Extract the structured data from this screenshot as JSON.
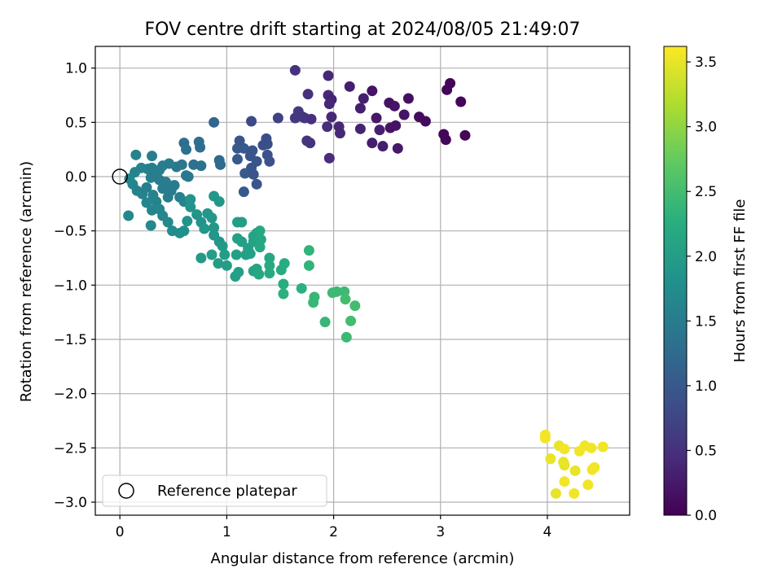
{
  "chart_data": {
    "type": "scatter",
    "title": "FOV centre drift starting at 2024/08/05 21:49:07",
    "xlabel": "Angular distance from reference (arcmin)",
    "ylabel": "Rotation from reference (arcmin)",
    "xlim": [
      -0.23,
      4.77
    ],
    "ylim": [
      -3.12,
      1.2
    ],
    "xticks": [
      0,
      1,
      2,
      3,
      4
    ],
    "xtick_labels": [
      "0",
      "1",
      "2",
      "3",
      "4"
    ],
    "yticks": [
      1.0,
      0.5,
      0.0,
      -0.5,
      -1.0,
      -1.5,
      -2.0,
      -2.5,
      -3.0
    ],
    "ytick_labels": [
      "1.0",
      "0.5",
      "0.0",
      "−0.5",
      "−1.0",
      "−1.5",
      "−2.0",
      "−2.5",
      "−3.0"
    ],
    "grid": true,
    "colorbar": {
      "label": "Hours from first FF file",
      "cmap": "viridis",
      "range": [
        0.0,
        3.62
      ],
      "ticks": [
        0.0,
        0.5,
        1.0,
        1.5,
        2.0,
        2.5,
        3.0,
        3.5
      ],
      "tick_labels": [
        "0.0",
        "0.5",
        "1.0",
        "1.5",
        "2.0",
        "2.5",
        "3.0",
        "3.5"
      ]
    },
    "legend": {
      "position": "lower-left",
      "entries": [
        "Reference platepar"
      ]
    },
    "reference_point": {
      "x": 0.0,
      "y": 0.0,
      "label": "Reference platepar"
    },
    "points": [
      [
        1.64,
        0.98,
        0.5
      ],
      [
        1.95,
        0.93,
        0.4
      ],
      [
        2.15,
        0.83,
        0.3
      ],
      [
        2.28,
        0.72,
        0.3
      ],
      [
        2.36,
        0.79,
        0.2
      ],
      [
        1.76,
        0.76,
        0.5
      ],
      [
        1.95,
        0.75,
        0.4
      ],
      [
        1.98,
        0.71,
        0.35
      ],
      [
        1.96,
        0.67,
        0.4
      ],
      [
        2.25,
        0.63,
        0.3
      ],
      [
        2.52,
        0.68,
        0.2
      ],
      [
        2.57,
        0.65,
        0.2
      ],
      [
        2.7,
        0.72,
        0.15
      ],
      [
        2.66,
        0.57,
        0.2
      ],
      [
        2.8,
        0.55,
        0.1
      ],
      [
        2.86,
        0.51,
        0.1
      ],
      [
        2.4,
        0.54,
        0.25
      ],
      [
        2.53,
        0.45,
        0.2
      ],
      [
        2.58,
        0.47,
        0.2
      ],
      [
        3.09,
        0.86,
        0.05
      ],
      [
        3.06,
        0.8,
        0.05
      ],
      [
        3.19,
        0.69,
        0.05
      ],
      [
        3.03,
        0.39,
        0.05
      ],
      [
        3.05,
        0.34,
        0.05
      ],
      [
        3.23,
        0.38,
        0.05
      ],
      [
        1.67,
        0.6,
        0.6
      ],
      [
        1.71,
        0.55,
        0.55
      ],
      [
        1.64,
        0.54,
        0.6
      ],
      [
        1.73,
        0.54,
        0.55
      ],
      [
        1.79,
        0.53,
        0.5
      ],
      [
        1.98,
        0.55,
        0.4
      ],
      [
        1.94,
        0.46,
        0.45
      ],
      [
        2.05,
        0.46,
        0.4
      ],
      [
        2.06,
        0.4,
        0.4
      ],
      [
        2.25,
        0.44,
        0.35
      ],
      [
        2.43,
        0.43,
        0.3
      ],
      [
        2.36,
        0.31,
        0.3
      ],
      [
        2.46,
        0.28,
        0.3
      ],
      [
        2.6,
        0.26,
        0.25
      ],
      [
        1.75,
        0.33,
        0.55
      ],
      [
        1.78,
        0.31,
        0.55
      ],
      [
        1.96,
        0.17,
        0.45
      ],
      [
        1.48,
        0.54,
        0.7
      ],
      [
        1.23,
        0.51,
        0.8
      ],
      [
        1.37,
        0.35,
        0.85
      ],
      [
        1.38,
        0.3,
        0.85
      ],
      [
        1.34,
        0.29,
        0.85
      ],
      [
        1.38,
        0.2,
        0.9
      ],
      [
        1.4,
        0.14,
        0.9
      ],
      [
        1.12,
        0.33,
        0.95
      ],
      [
        1.1,
        0.26,
        1.0
      ],
      [
        1.16,
        0.26,
        1.0
      ],
      [
        1.24,
        0.24,
        0.95
      ],
      [
        1.22,
        0.19,
        0.95
      ],
      [
        1.1,
        0.16,
        1.0
      ],
      [
        1.28,
        0.14,
        0.95
      ],
      [
        1.23,
        0.08,
        0.95
      ],
      [
        1.17,
        0.03,
        1.0
      ],
      [
        1.25,
        0.02,
        0.95
      ],
      [
        1.28,
        -0.07,
        0.95
      ],
      [
        1.16,
        -0.14,
        1.0
      ],
      [
        0.88,
        0.5,
        1.2
      ],
      [
        0.6,
        0.31,
        1.3
      ],
      [
        0.74,
        0.32,
        1.3
      ],
      [
        0.75,
        0.27,
        1.3
      ],
      [
        0.62,
        0.25,
        1.35
      ],
      [
        0.69,
        0.11,
        1.35
      ],
      [
        0.76,
        0.1,
        1.35
      ],
      [
        0.93,
        0.15,
        1.25
      ],
      [
        0.94,
        0.11,
        1.25
      ],
      [
        0.58,
        0.11,
        1.4
      ],
      [
        0.62,
        0.01,
        1.45
      ],
      [
        0.64,
        0.0,
        1.45
      ],
      [
        0.53,
        0.09,
        1.45
      ],
      [
        0.46,
        0.12,
        1.5
      ],
      [
        0.4,
        0.1,
        1.5
      ],
      [
        0.3,
        0.19,
        1.55
      ],
      [
        0.37,
        0.06,
        1.55
      ],
      [
        0.3,
        0.08,
        1.55
      ],
      [
        0.26,
        0.07,
        1.55
      ],
      [
        0.2,
        0.08,
        1.6
      ],
      [
        0.15,
        0.2,
        1.6
      ],
      [
        0.14,
        0.04,
        1.6
      ],
      [
        0.09,
        -0.02,
        1.65
      ],
      [
        0.12,
        -0.07,
        1.65
      ],
      [
        0.16,
        -0.13,
        1.6
      ],
      [
        0.21,
        -0.16,
        1.6
      ],
      [
        0.25,
        -0.1,
        1.55
      ],
      [
        0.29,
        -0.01,
        1.55
      ],
      [
        0.33,
        0.01,
        1.55
      ],
      [
        0.37,
        -0.03,
        1.5
      ],
      [
        0.43,
        -0.05,
        1.5
      ],
      [
        0.4,
        -0.11,
        1.5
      ],
      [
        0.48,
        -0.13,
        1.5
      ],
      [
        0.45,
        -0.19,
        1.5
      ],
      [
        0.51,
        -0.08,
        1.5
      ],
      [
        0.56,
        -0.19,
        1.55
      ],
      [
        0.6,
        -0.23,
        1.6
      ],
      [
        0.31,
        -0.17,
        1.6
      ],
      [
        0.34,
        -0.23,
        1.6
      ],
      [
        0.25,
        -0.24,
        1.65
      ],
      [
        0.3,
        -0.31,
        1.65
      ],
      [
        0.37,
        -0.3,
        1.65
      ],
      [
        0.4,
        -0.36,
        1.65
      ],
      [
        0.45,
        -0.42,
        1.7
      ],
      [
        0.29,
        -0.45,
        1.7
      ],
      [
        0.08,
        -0.36,
        1.7
      ],
      [
        0.49,
        -0.5,
        1.75
      ],
      [
        0.56,
        -0.52,
        1.75
      ],
      [
        0.6,
        -0.5,
        1.8
      ],
      [
        0.63,
        -0.41,
        1.85
      ],
      [
        0.66,
        -0.28,
        1.85
      ],
      [
        0.66,
        -0.21,
        1.85
      ],
      [
        0.72,
        -0.35,
        1.85
      ],
      [
        0.76,
        -0.42,
        1.85
      ],
      [
        0.82,
        -0.34,
        1.9
      ],
      [
        0.79,
        -0.48,
        1.9
      ],
      [
        0.86,
        -0.38,
        1.9
      ],
      [
        0.88,
        -0.47,
        1.9
      ],
      [
        0.93,
        -0.23,
        1.9
      ],
      [
        0.88,
        -0.18,
        1.9
      ],
      [
        0.88,
        -0.54,
        1.9
      ],
      [
        0.93,
        -0.6,
        1.9
      ],
      [
        0.96,
        -0.64,
        1.95
      ],
      [
        0.76,
        -0.75,
        1.95
      ],
      [
        0.86,
        -0.72,
        2.0
      ],
      [
        0.92,
        -0.8,
        2.0
      ],
      [
        0.98,
        -0.72,
        2.0
      ],
      [
        1.0,
        -0.82,
        2.0
      ],
      [
        1.09,
        -0.72,
        2.05
      ],
      [
        1.08,
        -0.92,
        2.05
      ],
      [
        1.11,
        -0.88,
        2.05
      ],
      [
        1.1,
        -0.57,
        2.05
      ],
      [
        1.14,
        -0.6,
        2.05
      ],
      [
        1.1,
        -0.42,
        2.0
      ],
      [
        1.14,
        -0.42,
        2.0
      ],
      [
        1.2,
        -0.66,
        2.05
      ],
      [
        1.22,
        -0.71,
        2.05
      ],
      [
        1.18,
        -0.72,
        2.05
      ],
      [
        1.25,
        -0.55,
        2.1
      ],
      [
        1.25,
        -0.6,
        2.1
      ],
      [
        1.28,
        -0.52,
        2.1
      ],
      [
        1.31,
        -0.5,
        2.15
      ],
      [
        1.32,
        -0.58,
        2.15
      ],
      [
        1.31,
        -0.65,
        2.15
      ],
      [
        1.25,
        -0.87,
        2.1
      ],
      [
        1.28,
        -0.85,
        2.1
      ],
      [
        1.3,
        -0.9,
        2.15
      ],
      [
        1.4,
        -0.75,
        2.15
      ],
      [
        1.4,
        -0.82,
        2.2
      ],
      [
        1.4,
        -0.89,
        2.2
      ],
      [
        1.51,
        -0.86,
        2.2
      ],
      [
        1.54,
        -0.8,
        2.25
      ],
      [
        1.53,
        -0.99,
        2.25
      ],
      [
        1.53,
        -1.08,
        2.3
      ],
      [
        1.7,
        -1.03,
        2.3
      ],
      [
        1.77,
        -0.68,
        2.35
      ],
      [
        1.77,
        -0.82,
        2.35
      ],
      [
        1.82,
        -1.11,
        2.4
      ],
      [
        1.81,
        -1.16,
        2.4
      ],
      [
        1.92,
        -1.34,
        2.4
      ],
      [
        1.99,
        -1.07,
        2.45
      ],
      [
        2.03,
        -1.06,
        2.45
      ],
      [
        2.1,
        -1.06,
        2.45
      ],
      [
        2.11,
        -1.13,
        2.5
      ],
      [
        2.2,
        -1.19,
        2.5
      ],
      [
        2.16,
        -1.33,
        2.5
      ],
      [
        2.12,
        -1.48,
        2.45
      ],
      [
        3.98,
        -2.38,
        3.55
      ],
      [
        3.98,
        -2.41,
        3.55
      ],
      [
        4.03,
        -2.6,
        3.5
      ],
      [
        4.11,
        -2.48,
        3.5
      ],
      [
        4.16,
        -2.51,
        3.55
      ],
      [
        4.15,
        -2.63,
        3.5
      ],
      [
        4.16,
        -2.66,
        3.5
      ],
      [
        4.16,
        -2.81,
        3.55
      ],
      [
        4.08,
        -2.92,
        3.5
      ],
      [
        4.25,
        -2.92,
        3.55
      ],
      [
        4.26,
        -2.71,
        3.5
      ],
      [
        4.3,
        -2.53,
        3.55
      ],
      [
        4.35,
        -2.48,
        3.55
      ],
      [
        4.41,
        -2.5,
        3.55
      ],
      [
        4.52,
        -2.49,
        3.55
      ],
      [
        4.44,
        -2.68,
        3.55
      ],
      [
        4.42,
        -2.7,
        3.55
      ],
      [
        4.38,
        -2.84,
        3.55
      ]
    ]
  }
}
